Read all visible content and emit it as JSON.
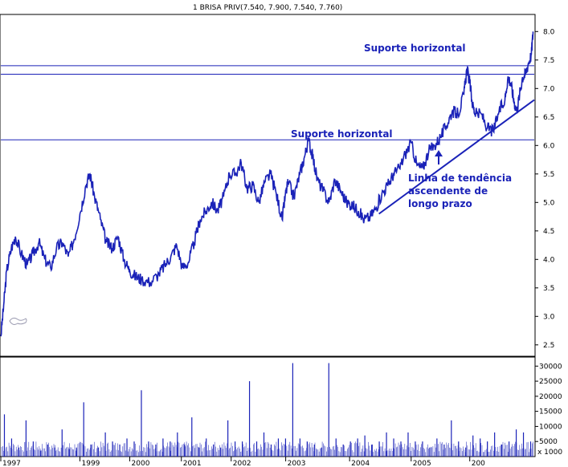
{
  "chart_data": {
    "type": "line",
    "title": "1 BRISA PRIV(7.540, 7.900, 7.540, 7.760)",
    "price_axis": {
      "ylim": [
        2.3,
        8.3
      ],
      "ticks": [
        "2.5",
        "3.0",
        "3.5",
        "4.0",
        "4.5",
        "5.0",
        "5.5",
        "6.0",
        "6.5",
        "7.0",
        "7.5",
        "8.0"
      ]
    },
    "volume_axis": {
      "ylim": [
        0,
        33000
      ],
      "ticks": [
        "5000",
        "10000",
        "15000",
        "20000",
        "25000",
        "30000"
      ],
      "unit_label": "x 1000"
    },
    "x_ticks": [
      "1997",
      "1999",
      "2000",
      "2001",
      "2002",
      "2003",
      "2004",
      "2005",
      "200"
    ],
    "x_range": [
      1997.0,
      2006.1
    ],
    "price_series": {
      "name": "BRISA PRIV",
      "points": [
        [
          1997.0,
          2.65
        ],
        [
          1997.05,
          3.2
        ],
        [
          1997.1,
          3.8
        ],
        [
          1997.18,
          4.2
        ],
        [
          1997.25,
          4.4
        ],
        [
          1997.35,
          4.1
        ],
        [
          1997.45,
          3.9
        ],
        [
          1997.55,
          4.1
        ],
        [
          1997.65,
          4.3
        ],
        [
          1997.75,
          4.0
        ],
        [
          1997.85,
          3.85
        ],
        [
          1997.95,
          4.2
        ],
        [
          1998.05,
          4.3
        ],
        [
          1998.15,
          4.05
        ],
        [
          1998.25,
          4.35
        ],
        [
          1998.35,
          4.8
        ],
        [
          1998.45,
          5.3
        ],
        [
          1998.52,
          5.5
        ],
        [
          1998.6,
          5.1
        ],
        [
          1998.7,
          4.7
        ],
        [
          1998.8,
          4.3
        ],
        [
          1998.9,
          4.2
        ],
        [
          1999.0,
          4.4
        ],
        [
          1999.1,
          4.0
        ],
        [
          1999.2,
          3.8
        ],
        [
          1999.3,
          3.7
        ],
        [
          1999.4,
          3.65
        ],
        [
          1999.55,
          3.6
        ],
        [
          1999.7,
          3.75
        ],
        [
          1999.8,
          3.9
        ],
        [
          1999.9,
          4.05
        ],
        [
          2000.0,
          4.25
        ],
        [
          2000.1,
          3.85
        ],
        [
          2000.2,
          3.95
        ],
        [
          2000.3,
          4.3
        ],
        [
          2000.4,
          4.7
        ],
        [
          2000.5,
          4.85
        ],
        [
          2000.6,
          5.0
        ],
        [
          2000.7,
          4.85
        ],
        [
          2000.8,
          5.1
        ],
        [
          2000.9,
          5.5
        ],
        [
          2001.0,
          5.5
        ],
        [
          2001.1,
          5.7
        ],
        [
          2001.2,
          5.25
        ],
        [
          2001.3,
          5.3
        ],
        [
          2001.4,
          5.0
        ],
        [
          2001.5,
          5.35
        ],
        [
          2001.6,
          5.5
        ],
        [
          2001.7,
          5.15
        ],
        [
          2001.8,
          4.7
        ],
        [
          2001.85,
          5.1
        ],
        [
          2001.9,
          5.35
        ],
        [
          2002.0,
          5.1
        ],
        [
          2002.1,
          5.5
        ],
        [
          2002.18,
          5.8
        ],
        [
          2002.25,
          6.1
        ],
        [
          2002.32,
          5.8
        ],
        [
          2002.4,
          5.4
        ],
        [
          2002.5,
          5.2
        ],
        [
          2002.6,
          5.0
        ],
        [
          2002.7,
          5.4
        ],
        [
          2002.8,
          5.2
        ],
        [
          2002.9,
          5.0
        ],
        [
          2003.0,
          4.95
        ],
        [
          2003.1,
          4.85
        ],
        [
          2003.2,
          4.7
        ],
        [
          2003.3,
          4.75
        ],
        [
          2003.4,
          4.9
        ],
        [
          2003.5,
          5.15
        ],
        [
          2003.6,
          5.3
        ],
        [
          2003.7,
          5.5
        ],
        [
          2003.8,
          5.6
        ],
        [
          2003.9,
          5.85
        ],
        [
          2004.0,
          6.05
        ],
        [
          2004.1,
          5.65
        ],
        [
          2004.2,
          5.6
        ],
        [
          2004.3,
          5.9
        ],
        [
          2004.4,
          6.0
        ],
        [
          2004.5,
          6.15
        ],
        [
          2004.6,
          6.35
        ],
        [
          2004.7,
          6.6
        ],
        [
          2004.8,
          6.55
        ],
        [
          2004.9,
          6.9
        ],
        [
          2004.95,
          7.35
        ],
        [
          2005.0,
          7.1
        ],
        [
          2005.05,
          6.7
        ],
        [
          2005.1,
          6.55
        ],
        [
          2005.2,
          6.55
        ],
        [
          2005.3,
          6.3
        ],
        [
          2005.4,
          6.25
        ],
        [
          2005.5,
          6.6
        ],
        [
          2005.6,
          6.8
        ],
        [
          2005.65,
          7.2
        ],
        [
          2005.7,
          7.1
        ],
        [
          2005.75,
          6.8
        ],
        [
          2005.8,
          6.6
        ],
        [
          2005.85,
          6.9
        ],
        [
          2005.9,
          7.2
        ],
        [
          2005.95,
          7.25
        ],
        [
          2006.0,
          7.45
        ],
        [
          2006.05,
          7.6
        ],
        [
          2006.08,
          8.0
        ]
      ]
    },
    "volume_values": [
      14000,
      6000,
      3000,
      12000,
      5000,
      2000,
      4000,
      3000,
      9000,
      2500,
      3000,
      18000,
      4000,
      3000,
      8000,
      5000,
      4000,
      6000,
      5000,
      22000,
      5000,
      4000,
      6000,
      5000,
      8000,
      4000,
      13000,
      3000,
      6000,
      4000,
      3000,
      12000,
      5000,
      5000,
      25000,
      5000,
      8000,
      4000,
      6000,
      6000,
      31000,
      6000,
      5000,
      4000,
      3000,
      31000,
      6000,
      4000,
      5000,
      6000,
      7000,
      4000,
      5000,
      8000,
      6000,
      5000,
      8000,
      5000,
      5000,
      3000,
      6000,
      4000,
      12000,
      5000,
      3000,
      7000,
      6000,
      5000,
      8000,
      4000,
      5000,
      9000,
      8000,
      5000
    ],
    "annotations": [
      {
        "text": "Suporte horizontal",
        "anchor": "top-right"
      },
      {
        "text": "Suporte horizontal",
        "anchor": "middle-center"
      },
      {
        "text": "Linha de tendência",
        "anchor": "center-right"
      },
      {
        "text": "ascendente de",
        "anchor": "center-right"
      },
      {
        "text": "longo prazo",
        "anchor": "center-right"
      }
    ],
    "support_levels": [
      7.4,
      7.25,
      6.1
    ],
    "trendline": {
      "from": [
        2003.45,
        4.8
      ],
      "to": [
        2006.1,
        6.8
      ]
    },
    "colors": {
      "price": "#1a22b8",
      "volume": "#1a22b8",
      "lines": "#1a22b8",
      "text": "#1a22b8"
    }
  }
}
